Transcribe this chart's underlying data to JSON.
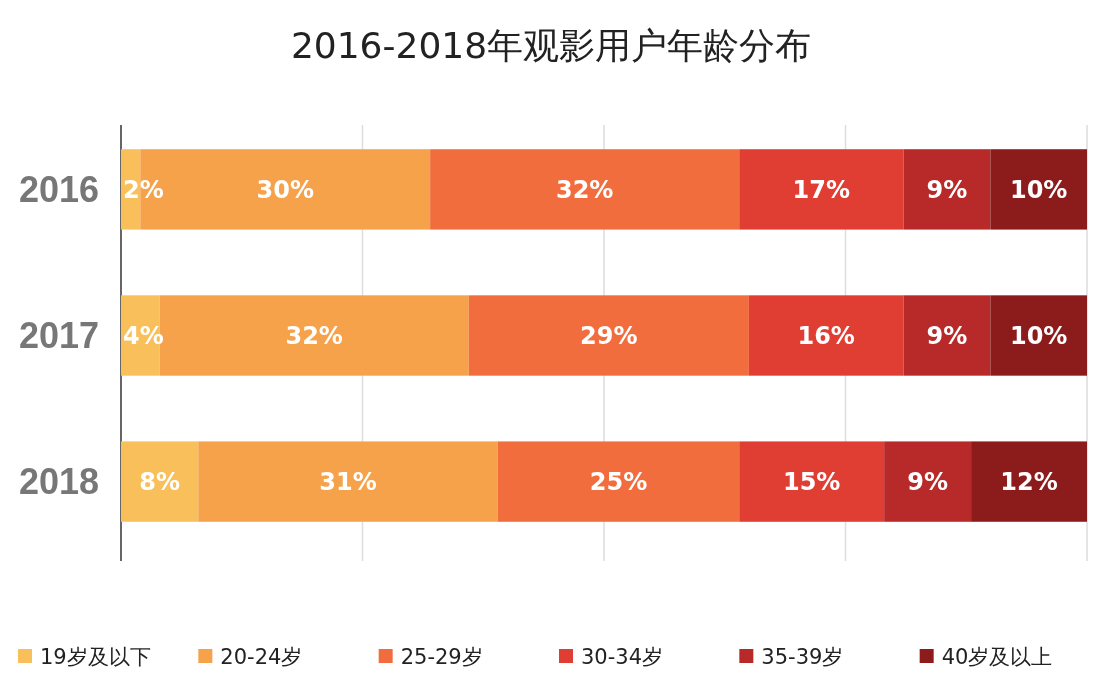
{
  "chart_data": {
    "type": "bar",
    "title": "2016-2018年观影用户年龄分布",
    "orientation": "horizontal",
    "stacked": true,
    "categories": [
      "2016",
      "2017",
      "2018"
    ],
    "series": [
      {
        "name": "19岁及以下",
        "color": "#f9bf5b",
        "values": [
          2,
          4,
          8
        ],
        "value_labels": [
          "2%",
          "4%",
          "8%"
        ]
      },
      {
        "name": "20-24岁",
        "color": "#f5a24b",
        "values": [
          30,
          32,
          31
        ],
        "value_labels": [
          "30%",
          "32%",
          "31%"
        ]
      },
      {
        "name": "25-29岁",
        "color": "#f26d3d",
        "values": [
          32,
          29,
          25
        ],
        "value_labels": [
          "32%",
          "29%",
          "25%"
        ]
      },
      {
        "name": "30-34岁",
        "color": "#e03d33",
        "values": [
          17,
          16,
          15
        ],
        "value_labels": [
          "17%",
          "16%",
          "15%"
        ]
      },
      {
        "name": "35-39岁",
        "color": "#b82a2a",
        "values": [
          9,
          9,
          9
        ],
        "value_labels": [
          "9%",
          "9%",
          "9%"
        ]
      },
      {
        "name": "40岁及以上",
        "color": "#8c1c1c",
        "values": [
          10,
          10,
          12
        ],
        "value_labels": [
          "10%",
          "10%",
          "12%"
        ]
      }
    ],
    "xlim": [
      0,
      100
    ],
    "xticks": [
      {
        "value": 0,
        "label": null
      },
      {
        "value": 25,
        "label": null
      },
      {
        "value": 50,
        "label": null
      },
      {
        "value": 75,
        "label": null
      },
      {
        "value": 100,
        "label": null
      }
    ],
    "tick_labels": "y",
    "grid": "x",
    "legend": "bottom"
  }
}
